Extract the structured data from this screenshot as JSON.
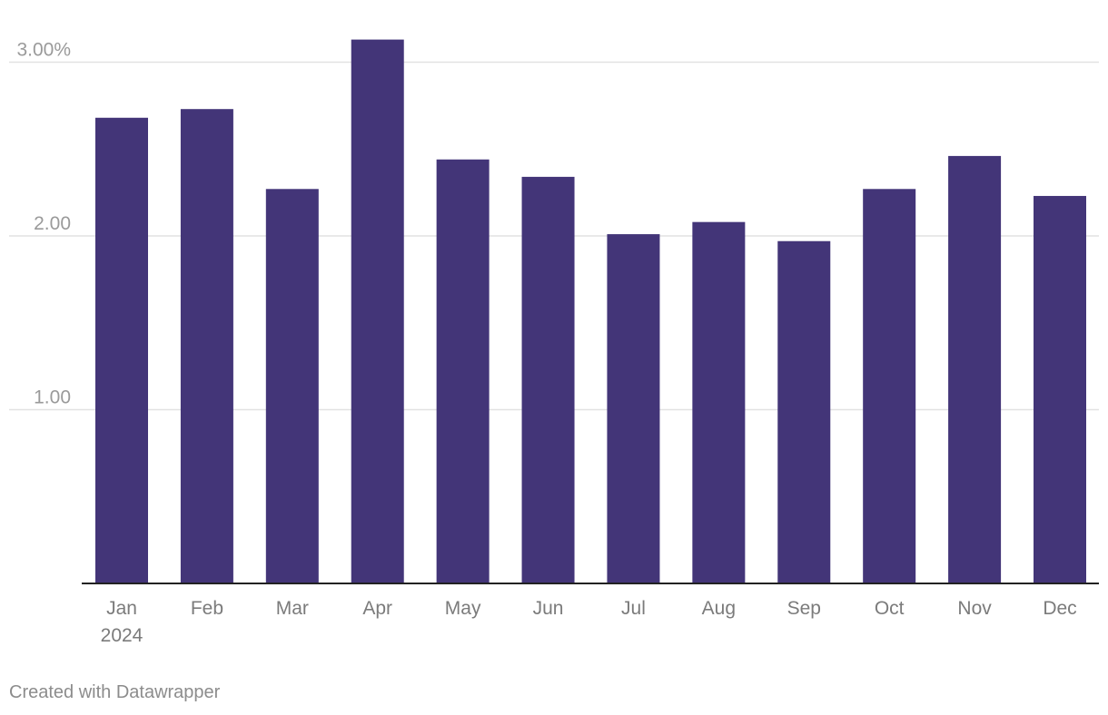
{
  "chart_data": {
    "type": "bar",
    "title": "",
    "xlabel": "",
    "ylabel": "",
    "categories": [
      "Jan",
      "Feb",
      "Mar",
      "Apr",
      "May",
      "Jun",
      "Jul",
      "Aug",
      "Sep",
      "Oct",
      "Nov",
      "Dec"
    ],
    "year_label": "2024",
    "values": [
      2.68,
      2.73,
      2.27,
      3.13,
      2.44,
      2.34,
      2.01,
      2.08,
      1.97,
      2.27,
      2.46,
      2.23
    ],
    "ylim": [
      0,
      3.3
    ],
    "yticks": [
      {
        "value": 1,
        "label": "1.00"
      },
      {
        "value": 2,
        "label": "2.00"
      },
      {
        "value": 3,
        "label": "3.00%"
      }
    ],
    "grid": true,
    "bar_color": "#433578"
  },
  "footer": {
    "credit": "Created with Datawrapper"
  }
}
